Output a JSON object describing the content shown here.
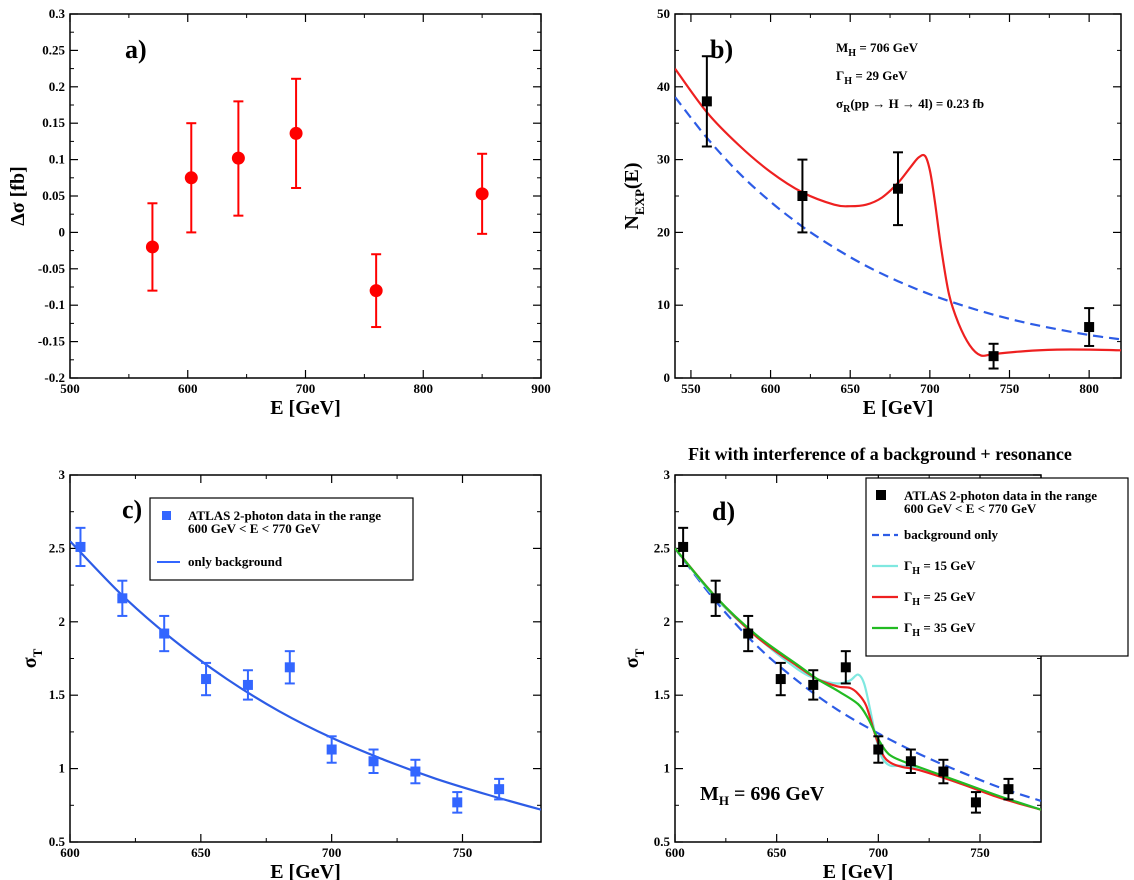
{
  "chart_data": [
    {
      "id": "a",
      "type": "scatter",
      "panel_label": "a)",
      "xlabel": "E  [GeV]",
      "ylabel": "Δσ  [fb]",
      "xlim": [
        500,
        900
      ],
      "ylim": [
        -0.2,
        0.3
      ],
      "xticks": [
        500,
        600,
        700,
        800,
        900
      ],
      "xtick_labels": [
        "500",
        "600",
        "700",
        "800",
        "900"
      ],
      "yticks": [
        -0.2,
        -0.15,
        -0.1,
        -0.05,
        0,
        0.05,
        0.1,
        0.15,
        0.2,
        0.25,
        0.3
      ],
      "ytick_labels": [
        "-0.2",
        "-0.15",
        "-0.1",
        "-0.05",
        "0",
        "0.05",
        "0.1",
        "0.15",
        "0.2",
        "0.25",
        "0.3"
      ],
      "marker_color": "#ff0000",
      "points": [
        {
          "x": 570,
          "y": -0.02,
          "lo": -0.08,
          "hi": 0.04
        },
        {
          "x": 603,
          "y": 0.075,
          "lo": 0.0,
          "hi": 0.15
        },
        {
          "x": 643,
          "y": 0.102,
          "lo": 0.023,
          "hi": 0.18
        },
        {
          "x": 692,
          "y": 0.136,
          "lo": 0.061,
          "hi": 0.211
        },
        {
          "x": 760,
          "y": -0.08,
          "lo": -0.13,
          "hi": -0.03
        },
        {
          "x": 850,
          "y": 0.053,
          "lo": -0.002,
          "hi": 0.108
        }
      ]
    },
    {
      "id": "b",
      "type": "line",
      "panel_label": "b)",
      "xlabel": "E [GeV]",
      "ylabel": "N",
      "ylabel_sub": "EXP",
      "ylabel_tail": "(E)",
      "xlim": [
        540,
        820
      ],
      "ylim": [
        0,
        50
      ],
      "xticks": [
        550,
        600,
        650,
        700,
        750,
        800
      ],
      "xtick_labels": [
        "550",
        "600",
        "650",
        "700",
        "750",
        "800"
      ],
      "yticks": [
        0,
        10,
        20,
        30,
        40,
        50
      ],
      "ytick_labels": [
        "0",
        "10",
        "20",
        "30",
        "40",
        "50"
      ],
      "annotations": {
        "mass_main": "M",
        "mass_sub": "H",
        "mass_value": " = 706 GeV",
        "width_main": "Γ",
        "width_sub": "H",
        "width_value": " = 29 GeV",
        "xs_main": "σ",
        "xs_sub": "R",
        "xs_value": "(pp → H → 4l) = 0.23  fb"
      },
      "series": [
        {
          "name": "background + resonance",
          "style": "solid",
          "color": "#ee2020",
          "x": [
            540,
            560,
            580,
            600,
            620,
            640,
            650,
            660,
            670,
            680,
            688,
            693,
            697,
            700,
            703,
            707,
            712,
            718,
            725,
            732,
            740,
            760,
            780,
            800,
            820
          ],
          "y": [
            42.5,
            36.5,
            32.0,
            28.3,
            25.5,
            23.8,
            23.6,
            23.8,
            24.8,
            26.8,
            29.0,
            30.3,
            30.5,
            28.5,
            24.5,
            18.0,
            11.5,
            7.5,
            4.5,
            3.1,
            3.3,
            3.7,
            3.9,
            3.9,
            3.8
          ]
        },
        {
          "name": "background",
          "style": "dashed",
          "color": "#2d5ce6",
          "x": [
            540,
            560,
            580,
            600,
            620,
            640,
            660,
            680,
            700,
            720,
            740,
            760,
            780,
            800,
            820
          ],
          "y": [
            38.6,
            33.0,
            28.2,
            24.2,
            20.8,
            17.9,
            15.4,
            13.3,
            11.5,
            10.0,
            8.7,
            7.6,
            6.7,
            5.9,
            5.3
          ]
        }
      ],
      "points": [
        {
          "x": 560,
          "y": 38,
          "lo": 31.8,
          "hi": 44.2
        },
        {
          "x": 620,
          "y": 25,
          "lo": 20,
          "hi": 30
        },
        {
          "x": 680,
          "y": 26,
          "lo": 21,
          "hi": 31
        },
        {
          "x": 740,
          "y": 3,
          "lo": 1.3,
          "hi": 4.7
        },
        {
          "x": 800,
          "y": 7,
          "lo": 4.4,
          "hi": 9.6
        }
      ]
    },
    {
      "id": "c",
      "type": "scatter",
      "panel_label": "c)",
      "xlabel": "E [GeV]",
      "ylabel": "σ",
      "ylabel_sub": "T",
      "xlim": [
        600,
        780
      ],
      "ylim": [
        0.5,
        3
      ],
      "xticks": [
        600,
        650,
        700,
        750
      ],
      "xtick_labels": [
        "600",
        "650",
        "700",
        "750"
      ],
      "yticks": [
        0.5,
        1,
        1.5,
        2,
        2.5,
        3
      ],
      "ytick_labels": [
        "0.5",
        "1",
        "1.5",
        "2",
        "2.5",
        "3"
      ],
      "legend": {
        "entries": [
          {
            "label": "ATLAS 2-photon data in the range",
            "label2": "600 GeV < E < 770 GeV",
            "kind": "marker",
            "color": "#3366ff"
          },
          {
            "label": "only background",
            "kind": "line",
            "color": "#3366ff"
          }
        ]
      },
      "series": [
        {
          "name": "only background",
          "style": "solid",
          "color": "#2d5ce6",
          "x": [
            600,
            620,
            640,
            660,
            680,
            700,
            720,
            740,
            760,
            780
          ],
          "y": [
            2.55,
            2.18,
            1.87,
            1.61,
            1.39,
            1.21,
            1.06,
            0.93,
            0.82,
            0.72
          ]
        }
      ],
      "points": [
        {
          "x": 604,
          "y": 2.51,
          "lo": 2.38,
          "hi": 2.64
        },
        {
          "x": 620,
          "y": 2.16,
          "lo": 2.04,
          "hi": 2.28
        },
        {
          "x": 636,
          "y": 1.92,
          "lo": 1.8,
          "hi": 2.04
        },
        {
          "x": 652,
          "y": 1.61,
          "lo": 1.5,
          "hi": 1.72
        },
        {
          "x": 668,
          "y": 1.57,
          "lo": 1.47,
          "hi": 1.67
        },
        {
          "x": 684,
          "y": 1.69,
          "lo": 1.58,
          "hi": 1.8
        },
        {
          "x": 700,
          "y": 1.13,
          "lo": 1.04,
          "hi": 1.22
        },
        {
          "x": 716,
          "y": 1.05,
          "lo": 0.97,
          "hi": 1.13
        },
        {
          "x": 732,
          "y": 0.98,
          "lo": 0.9,
          "hi": 1.06
        },
        {
          "x": 748,
          "y": 0.77,
          "lo": 0.7,
          "hi": 0.84
        },
        {
          "x": 764,
          "y": 0.86,
          "lo": 0.79,
          "hi": 0.93
        }
      ]
    },
    {
      "id": "d",
      "type": "line",
      "panel_label": "d)",
      "title": "Fit with interference of a background + resonance",
      "xlabel": "E [GeV]",
      "ylabel": "σ",
      "ylabel_sub": "T",
      "xlim": [
        600,
        780
      ],
      "ylim": [
        0.5,
        3
      ],
      "xticks": [
        600,
        650,
        700,
        750
      ],
      "xtick_labels": [
        "600",
        "650",
        "700",
        "750"
      ],
      "yticks": [
        0.5,
        1,
        1.5,
        2,
        2.5,
        3
      ],
      "ytick_labels": [
        "0.5",
        "1",
        "1.5",
        "2",
        "2.5",
        "3"
      ],
      "mass_main": "M",
      "mass_sub": "H",
      "mass_value": " = 696 GeV",
      "legend": {
        "entries": [
          {
            "label": "ATLAS 2-photon data in the range",
            "label2": "600 GeV < E < 770 GeV",
            "kind": "marker",
            "color": "#000000"
          },
          {
            "label": "background only",
            "kind": "dash",
            "color": "#2d5ce6"
          },
          {
            "label": "Γ",
            "sub": "H",
            "tail": " = 15 GeV",
            "kind": "line",
            "color": "#7fe8e0"
          },
          {
            "label": "Γ",
            "sub": "H",
            "tail": " = 25 GeV",
            "kind": "line",
            "color": "#ee2020"
          },
          {
            "label": "Γ",
            "sub": "H",
            "tail": " = 35 GeV",
            "kind": "line",
            "color": "#22bb22"
          }
        ]
      },
      "series": [
        {
          "name": "background only",
          "style": "dashed",
          "color": "#2d5ce6",
          "x": [
            600,
            620,
            640,
            660,
            680,
            700,
            720,
            740,
            760,
            780
          ],
          "y": [
            2.5,
            2.14,
            1.84,
            1.6,
            1.4,
            1.24,
            1.1,
            0.98,
            0.87,
            0.78
          ]
        },
        {
          "name": "Γ = 15 GeV",
          "style": "solid",
          "color": "#7fe8e0",
          "x": [
            600,
            620,
            640,
            660,
            670,
            680,
            686,
            690,
            693,
            696,
            699,
            702,
            706,
            712,
            720,
            740,
            760,
            780
          ],
          "y": [
            2.5,
            2.16,
            1.9,
            1.68,
            1.61,
            1.58,
            1.6,
            1.64,
            1.58,
            1.4,
            1.2,
            1.07,
            1.02,
            1.02,
            1.0,
            0.9,
            0.81,
            0.72
          ]
        },
        {
          "name": "Γ = 25 GeV",
          "style": "solid",
          "color": "#ee2020",
          "x": [
            600,
            620,
            640,
            660,
            670,
            680,
            686,
            690,
            694,
            698,
            702,
            706,
            712,
            720,
            740,
            760,
            780
          ],
          "y": [
            2.5,
            2.17,
            1.9,
            1.7,
            1.61,
            1.56,
            1.55,
            1.51,
            1.43,
            1.25,
            1.1,
            1.04,
            1.01,
            0.99,
            0.9,
            0.8,
            0.72
          ]
        },
        {
          "name": "Γ = 35 GeV",
          "style": "solid",
          "color": "#22bb22",
          "x": [
            600,
            620,
            640,
            660,
            670,
            680,
            690,
            695,
            700,
            705,
            712,
            720,
            740,
            760,
            780
          ],
          "y": [
            2.5,
            2.17,
            1.91,
            1.71,
            1.61,
            1.53,
            1.44,
            1.34,
            1.2,
            1.1,
            1.05,
            1.01,
            0.91,
            0.81,
            0.72
          ]
        }
      ],
      "points": [
        {
          "x": 604,
          "y": 2.51,
          "lo": 2.38,
          "hi": 2.64
        },
        {
          "x": 620,
          "y": 2.16,
          "lo": 2.04,
          "hi": 2.28
        },
        {
          "x": 636,
          "y": 1.92,
          "lo": 1.8,
          "hi": 2.04
        },
        {
          "x": 652,
          "y": 1.61,
          "lo": 1.5,
          "hi": 1.72
        },
        {
          "x": 668,
          "y": 1.57,
          "lo": 1.47,
          "hi": 1.67
        },
        {
          "x": 684,
          "y": 1.69,
          "lo": 1.58,
          "hi": 1.8
        },
        {
          "x": 700,
          "y": 1.13,
          "lo": 1.04,
          "hi": 1.22
        },
        {
          "x": 716,
          "y": 1.05,
          "lo": 0.97,
          "hi": 1.13
        },
        {
          "x": 732,
          "y": 0.98,
          "lo": 0.9,
          "hi": 1.06
        },
        {
          "x": 748,
          "y": 0.77,
          "lo": 0.7,
          "hi": 0.84
        },
        {
          "x": 764,
          "y": 0.86,
          "lo": 0.79,
          "hi": 0.93
        }
      ]
    }
  ]
}
